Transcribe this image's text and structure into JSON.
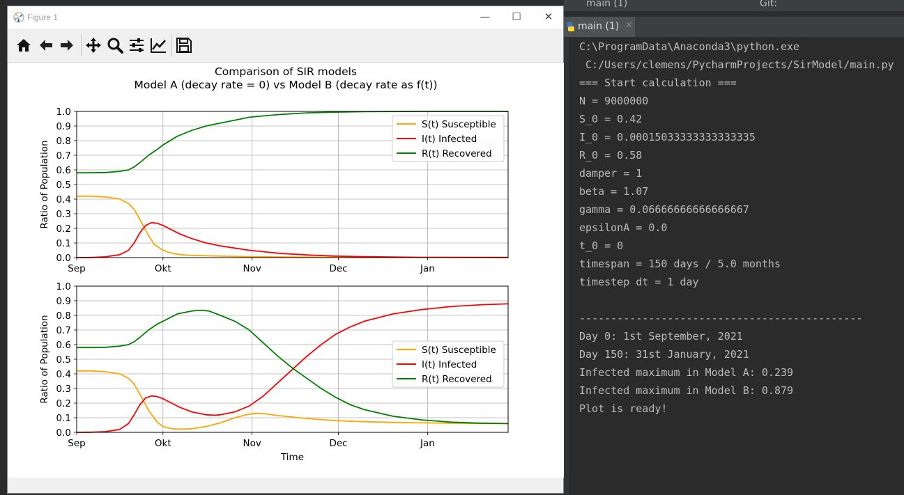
{
  "window": {
    "title": "Figure 1"
  },
  "toolbar": {
    "buttons": [
      "home-icon",
      "back-icon",
      "forward-icon",
      "pan-icon",
      "zoom-icon",
      "configure-subplots-icon",
      "edit-axis-icon",
      "save-icon"
    ]
  },
  "figure": {
    "suptitle_line1": "Comparison of SIR models",
    "suptitle_line2": "Model A (decay rate = 0) vs Model B (decay rate as f(t))"
  },
  "chart_data": [
    {
      "type": "line",
      "ylabel": "Ratio of Population",
      "xlabel": "",
      "ylim": [
        0,
        1.0
      ],
      "xlim": [
        0,
        150
      ],
      "x_ticks": [
        {
          "day": 0,
          "label": "Sep"
        },
        {
          "day": 30,
          "label": "Okt"
        },
        {
          "day": 61,
          "label": "Nov"
        },
        {
          "day": 91,
          "label": "Dec"
        },
        {
          "day": 122,
          "label": "Jan"
        }
      ],
      "y_ticks": [
        "0.0",
        "0.1",
        "0.2",
        "0.3",
        "0.4",
        "0.5",
        "0.6",
        "0.7",
        "0.8",
        "0.9",
        "1.0"
      ],
      "grid": true,
      "legend_position": "top-right",
      "series": [
        {
          "name": "S(t) Susceptible",
          "color": "#ffa500",
          "x": [
            0,
            5,
            10,
            15,
            18,
            20,
            22,
            25,
            27,
            30,
            33,
            36,
            40,
            50,
            60,
            80,
            100,
            150
          ],
          "y": [
            0.42,
            0.42,
            0.415,
            0.4,
            0.37,
            0.33,
            0.26,
            0.15,
            0.09,
            0.05,
            0.03,
            0.02,
            0.015,
            0.01,
            0.006,
            0.003,
            0.002,
            0.002
          ]
        },
        {
          "name": "I(t) Infected",
          "color": "#ff0000",
          "x": [
            0,
            5,
            10,
            15,
            18,
            20,
            22,
            24,
            26,
            28,
            30,
            33,
            36,
            40,
            45,
            50,
            60,
            70,
            80,
            90,
            100,
            120,
            150
          ],
          "y": [
            0.0,
            0.001,
            0.005,
            0.02,
            0.05,
            0.1,
            0.17,
            0.22,
            0.239,
            0.235,
            0.22,
            0.19,
            0.16,
            0.13,
            0.1,
            0.08,
            0.05,
            0.03,
            0.018,
            0.01,
            0.006,
            0.002,
            0.001
          ]
        },
        {
          "name": "R(t) Recovered",
          "color": "#008000",
          "x": [
            0,
            5,
            10,
            15,
            18,
            20,
            22,
            25,
            28,
            30,
            35,
            40,
            45,
            50,
            55,
            60,
            70,
            80,
            90,
            100,
            120,
            150
          ],
          "y": [
            0.58,
            0.58,
            0.582,
            0.59,
            0.6,
            0.62,
            0.65,
            0.7,
            0.74,
            0.77,
            0.83,
            0.87,
            0.9,
            0.92,
            0.94,
            0.96,
            0.978,
            0.99,
            0.995,
            0.998,
            1.0,
            1.0
          ]
        }
      ]
    },
    {
      "type": "line",
      "ylabel": "Ratio of Population",
      "xlabel": "Time",
      "ylim": [
        0,
        1.0
      ],
      "xlim": [
        0,
        150
      ],
      "x_ticks": [
        {
          "day": 0,
          "label": "Sep"
        },
        {
          "day": 30,
          "label": "Okt"
        },
        {
          "day": 61,
          "label": "Nov"
        },
        {
          "day": 91,
          "label": "Dec"
        },
        {
          "day": 122,
          "label": "Jan"
        }
      ],
      "y_ticks": [
        "0.0",
        "0.1",
        "0.2",
        "0.3",
        "0.4",
        "0.5",
        "0.6",
        "0.7",
        "0.8",
        "0.9",
        "1.0"
      ],
      "grid": true,
      "legend_position": "center-right",
      "series": [
        {
          "name": "S(t) Susceptible",
          "color": "#ffa500",
          "x": [
            0,
            5,
            10,
            15,
            18,
            20,
            22,
            25,
            28,
            30,
            33,
            36,
            40,
            45,
            50,
            55,
            60,
            62,
            65,
            70,
            80,
            90,
            100,
            110,
            120,
            130,
            140,
            150
          ],
          "y": [
            0.42,
            0.42,
            0.415,
            0.4,
            0.37,
            0.33,
            0.26,
            0.15,
            0.07,
            0.04,
            0.025,
            0.022,
            0.025,
            0.04,
            0.065,
            0.1,
            0.125,
            0.13,
            0.128,
            0.115,
            0.095,
            0.08,
            0.073,
            0.068,
            0.065,
            0.063,
            0.061,
            0.06
          ]
        },
        {
          "name": "I(t) Infected",
          "color": "#ff0000",
          "x": [
            0,
            5,
            10,
            15,
            18,
            20,
            22,
            24,
            26,
            28,
            30,
            33,
            36,
            40,
            45,
            48,
            50,
            55,
            60,
            65,
            70,
            75,
            80,
            85,
            90,
            95,
            100,
            110,
            120,
            130,
            140,
            150
          ],
          "y": [
            0.0,
            0.001,
            0.005,
            0.02,
            0.06,
            0.12,
            0.19,
            0.235,
            0.249,
            0.245,
            0.23,
            0.2,
            0.17,
            0.14,
            0.12,
            0.117,
            0.12,
            0.14,
            0.18,
            0.25,
            0.34,
            0.43,
            0.52,
            0.6,
            0.67,
            0.72,
            0.76,
            0.81,
            0.84,
            0.86,
            0.872,
            0.879
          ]
        },
        {
          "name": "R(t) Recovered",
          "color": "#008000",
          "x": [
            0,
            5,
            10,
            15,
            18,
            20,
            22,
            25,
            28,
            30,
            35,
            40,
            43,
            46,
            50,
            55,
            60,
            65,
            70,
            75,
            80,
            85,
            90,
            95,
            100,
            110,
            120,
            130,
            140,
            150
          ],
          "y": [
            0.58,
            0.58,
            0.582,
            0.59,
            0.6,
            0.62,
            0.65,
            0.7,
            0.74,
            0.76,
            0.81,
            0.83,
            0.835,
            0.83,
            0.8,
            0.76,
            0.7,
            0.61,
            0.52,
            0.44,
            0.37,
            0.3,
            0.24,
            0.19,
            0.155,
            0.11,
            0.085,
            0.07,
            0.063,
            0.06
          ]
        }
      ]
    }
  ],
  "ide": {
    "run_config": "main (1)",
    "git_label": "Git:",
    "tab_label": "main (1)",
    "console_lines": [
      "C:\\ProgramData\\Anaconda3\\python.exe",
      " C:/Users/clemens/PycharmProjects/SirModel/main.py",
      "=== Start calculation ===",
      "N = 9000000",
      "S_0 = 0.42",
      "I_0 = 0.00015033333333333335",
      "R_0 = 0.58",
      "damper = 1",
      "beta = 1.07",
      "gamma = 0.06666666666666667",
      "epsilonA = 0.0",
      "t_0 = 0",
      "timespan = 150 days / 5.0 months",
      "timestep dt = 1 day",
      "",
      "---------------------------------------------",
      "Day 0: 1st September, 2021",
      "Day 150: 31st January, 2021",
      "Infected maximum in Model A: 0.239",
      "Infected maximum in Model B: 0.879",
      "Plot is ready!"
    ]
  }
}
